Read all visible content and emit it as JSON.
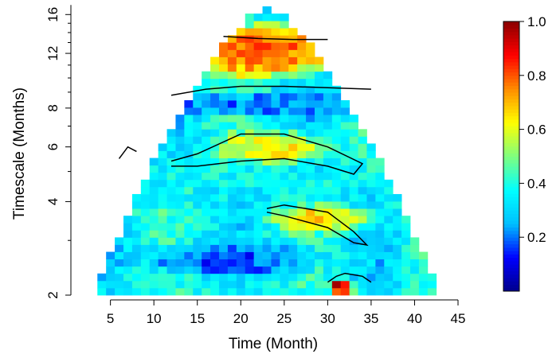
{
  "chart_data": {
    "type": "heatmap",
    "title": "",
    "xlabel": "Time (Month)",
    "ylabel": "Timescale (Months)",
    "x_ticks": [
      5,
      10,
      15,
      20,
      25,
      30,
      35,
      40,
      45
    ],
    "xlim": [
      1,
      45
    ],
    "y_scale": "log",
    "y_ticks": [
      2,
      4,
      6,
      8,
      12,
      16
    ],
    "ylim": [
      2,
      17
    ],
    "time_range": [
      3,
      43
    ],
    "colorbar": {
      "range": [
        0,
        1.0
      ],
      "ticks": [
        0.2,
        0.4,
        0.6,
        0.8,
        1.0
      ],
      "palette": [
        "#00008B",
        "#0000FF",
        "#00BFFF",
        "#00FFFF",
        "#7FFF7F",
        "#FFFF00",
        "#FF8C00",
        "#FF0000",
        "#8B0000"
      ]
    },
    "grid": false,
    "contours": [
      {
        "level": 0.6,
        "points": [
          [
            6,
            5.5
          ],
          [
            7,
            6.0
          ],
          [
            8,
            5.8
          ]
        ]
      },
      {
        "level": 0.6,
        "points": [
          [
            12,
            5.4
          ],
          [
            15,
            5.7
          ],
          [
            20,
            6.6
          ],
          [
            25,
            6.6
          ],
          [
            30,
            6.0
          ],
          [
            34,
            5.3
          ],
          [
            33,
            4.9
          ],
          [
            30,
            5.2
          ],
          [
            25,
            5.5
          ],
          [
            20,
            5.4
          ],
          [
            15,
            5.2
          ],
          [
            12,
            5.2
          ]
        ]
      },
      {
        "level": 0.6,
        "points": [
          [
            23,
            3.8
          ],
          [
            25,
            3.9
          ],
          [
            30,
            3.7
          ],
          [
            33,
            3.2
          ],
          [
            34.5,
            2.9
          ],
          [
            33,
            2.95
          ],
          [
            30,
            3.3
          ],
          [
            25,
            3.6
          ],
          [
            23,
            3.7
          ]
        ]
      },
      {
        "level": 0.6,
        "points": [
          [
            12,
            8.8
          ],
          [
            16,
            9.2
          ],
          [
            20,
            9.4
          ],
          [
            25,
            9.4
          ],
          [
            30,
            9.3
          ],
          [
            35,
            9.2
          ]
        ]
      },
      {
        "level": 0.6,
        "points": [
          [
            18,
            13.6
          ],
          [
            22,
            13.4
          ],
          [
            26,
            13.3
          ],
          [
            30,
            13.3
          ]
        ]
      },
      {
        "level": 0.6,
        "points": [
          [
            30,
            2.2
          ],
          [
            31,
            2.3
          ],
          [
            32,
            2.35
          ],
          [
            34,
            2.3
          ],
          [
            35,
            2.2
          ]
        ]
      }
    ],
    "features": [
      {
        "x": [
          12,
          32
        ],
        "y": [
          10,
          15
        ],
        "value": 0.78
      },
      {
        "x": [
          17,
          30
        ],
        "y": [
          5.3,
          6.8
        ],
        "value": 0.62
      },
      {
        "x": [
          23,
          35
        ],
        "y": [
          3.2,
          3.9
        ],
        "value": 0.65
      },
      {
        "x": [
          30,
          33
        ],
        "y": [
          2,
          2.25
        ],
        "value": 0.95
      },
      {
        "x": [
          10,
          35
        ],
        "y": [
          7.5,
          9
        ],
        "value": 0.2
      },
      {
        "x": [
          8,
          30
        ],
        "y": [
          2.3,
          3.0
        ],
        "value": 0.18
      }
    ]
  }
}
